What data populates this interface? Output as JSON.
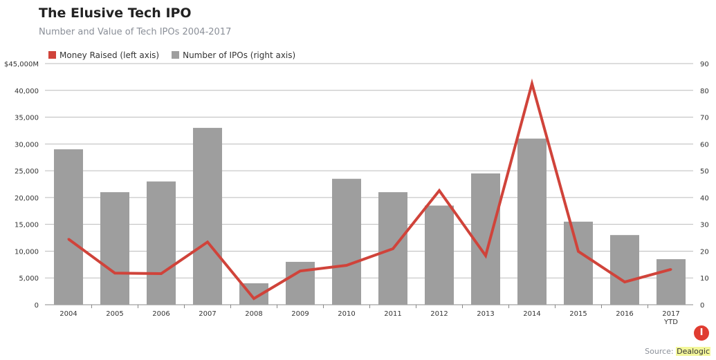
{
  "title": "The Elusive Tech IPO",
  "subtitle": "Number and Value of Tech IPOs 2004-2017",
  "source_label": "Source:",
  "source_name": "Dealogic",
  "logo_text": "I",
  "chart_data": {
    "type": "bar+line",
    "categories": [
      "2004",
      "2005",
      "2006",
      "2007",
      "2008",
      "2009",
      "2010",
      "2011",
      "2012",
      "2013",
      "2014",
      "2015",
      "2016",
      "2017"
    ],
    "category_sublabels": {
      "2017": "YTD"
    },
    "series": [
      {
        "name": "Money Raised (left axis)",
        "type": "line",
        "axis": "left",
        "color": "#d0433a",
        "values": [
          12250,
          5900,
          5800,
          11700,
          1150,
          6300,
          7350,
          10450,
          21300,
          9150,
          41250,
          9950,
          4250,
          6600
        ]
      },
      {
        "name": "Number of IPOs (right axis)",
        "type": "bar",
        "axis": "right",
        "color": "#9e9e9e",
        "values": [
          58,
          42,
          46,
          66,
          8,
          16,
          47,
          42,
          37,
          49,
          62,
          31,
          26,
          17
        ]
      }
    ],
    "left_axis": {
      "ylim": [
        0,
        45000
      ],
      "ticks": [
        "0",
        "5,000",
        "10,000",
        "15,000",
        "20,000",
        "25,000",
        "30,000",
        "35,000",
        "40,000",
        "$45,000M"
      ]
    },
    "right_axis": {
      "ylim": [
        0,
        90
      ],
      "ticks": [
        "0",
        "10",
        "20",
        "30",
        "40",
        "50",
        "60",
        "70",
        "80",
        "90"
      ]
    },
    "grid": true,
    "legend": "top-left"
  }
}
